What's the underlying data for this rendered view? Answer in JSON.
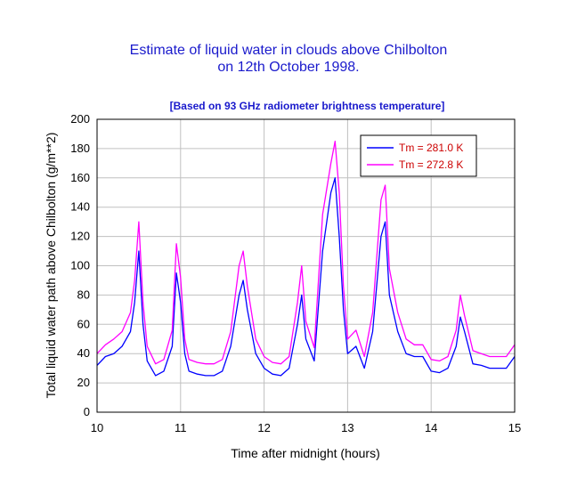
{
  "colors": {
    "series1": "#0000ff",
    "series2": "#ff00ff",
    "title": "#1a1acc",
    "legend_text": "#cc0000"
  },
  "chart_data": {
    "type": "line",
    "title_line1": "Estimate of liquid water in clouds above Chilbolton",
    "title_line2": "on 12th October 1998.",
    "subtitle": "[Based on 93 GHz radiometer brightness temperature]",
    "xlabel": "Time after midnight  (hours)",
    "ylabel": "Total liquid water path above Chilbolton (g/m**2)",
    "xlim": [
      10,
      15
    ],
    "ylim": [
      0,
      200
    ],
    "xticks": [
      10,
      11,
      12,
      13,
      14,
      15
    ],
    "yticks": [
      0,
      20,
      40,
      60,
      80,
      100,
      120,
      140,
      160,
      180,
      200
    ],
    "grid": true,
    "legend_position": "top-right",
    "series": [
      {
        "name": "Tm = 281.0 K",
        "color": "#0000ff",
        "x": [
          10.0,
          10.1,
          10.2,
          10.3,
          10.4,
          10.45,
          10.5,
          10.55,
          10.6,
          10.7,
          10.8,
          10.9,
          10.95,
          11.0,
          11.05,
          11.1,
          11.2,
          11.3,
          11.4,
          11.5,
          11.6,
          11.7,
          11.75,
          11.8,
          11.9,
          12.0,
          12.1,
          12.2,
          12.3,
          12.4,
          12.45,
          12.5,
          12.6,
          12.7,
          12.8,
          12.85,
          12.9,
          12.95,
          13.0,
          13.1,
          13.2,
          13.3,
          13.4,
          13.45,
          13.5,
          13.6,
          13.7,
          13.8,
          13.9,
          14.0,
          14.1,
          14.2,
          14.3,
          14.35,
          14.4,
          14.5,
          14.6,
          14.7,
          14.8,
          14.9,
          15.0
        ],
        "y": [
          32,
          38,
          40,
          45,
          55,
          75,
          110,
          60,
          35,
          25,
          28,
          45,
          95,
          75,
          40,
          28,
          26,
          25,
          25,
          28,
          45,
          80,
          90,
          70,
          40,
          30,
          26,
          25,
          30,
          60,
          80,
          50,
          35,
          110,
          150,
          160,
          120,
          70,
          40,
          45,
          30,
          55,
          120,
          130,
          80,
          55,
          40,
          38,
          38,
          28,
          27,
          30,
          45,
          65,
          55,
          33,
          32,
          30,
          30,
          30,
          38
        ]
      },
      {
        "name": "Tm = 272.8 K",
        "color": "#ff00ff",
        "x": [
          10.0,
          10.1,
          10.2,
          10.3,
          10.4,
          10.45,
          10.5,
          10.55,
          10.6,
          10.7,
          10.8,
          10.9,
          10.95,
          11.0,
          11.05,
          11.1,
          11.2,
          11.3,
          11.4,
          11.5,
          11.6,
          11.7,
          11.75,
          11.8,
          11.9,
          12.0,
          12.1,
          12.2,
          12.3,
          12.4,
          12.45,
          12.5,
          12.6,
          12.7,
          12.8,
          12.85,
          12.9,
          12.95,
          13.0,
          13.1,
          13.2,
          13.3,
          13.4,
          13.45,
          13.5,
          13.6,
          13.7,
          13.8,
          13.9,
          14.0,
          14.1,
          14.2,
          14.3,
          14.35,
          14.4,
          14.5,
          14.6,
          14.7,
          14.8,
          14.9,
          15.0
        ],
        "y": [
          40,
          46,
          50,
          55,
          68,
          90,
          130,
          75,
          45,
          33,
          36,
          56,
          115,
          92,
          50,
          36,
          34,
          33,
          33,
          36,
          55,
          100,
          110,
          86,
          50,
          38,
          34,
          33,
          38,
          75,
          100,
          62,
          44,
          135,
          170,
          185,
          150,
          86,
          50,
          56,
          38,
          68,
          145,
          155,
          98,
          68,
          50,
          46,
          46,
          36,
          35,
          38,
          56,
          80,
          66,
          42,
          40,
          38,
          38,
          38,
          46
        ]
      }
    ]
  }
}
